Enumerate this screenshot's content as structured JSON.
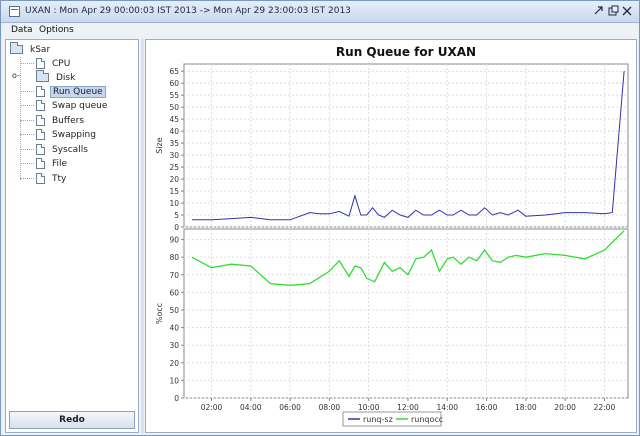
{
  "window": {
    "title": "UXAN : Mon Apr 29 00:00:03 IST 2013 -> Mon Apr 29 23:00:03 IST 2013"
  },
  "menu": {
    "items": [
      "Data",
      "Options"
    ]
  },
  "tree": {
    "root": "kSar",
    "items": [
      {
        "label": "CPU",
        "icon": "document-icon"
      },
      {
        "label": "Disk",
        "icon": "folder-icon",
        "collapsed": true
      },
      {
        "label": "Run Queue",
        "icon": "document-icon",
        "selected": true
      },
      {
        "label": "Swap queue",
        "icon": "document-icon"
      },
      {
        "label": "Buffers",
        "icon": "document-icon"
      },
      {
        "label": "Swapping",
        "icon": "document-icon"
      },
      {
        "label": "Syscalls",
        "icon": "document-icon"
      },
      {
        "label": "File",
        "icon": "document-icon"
      },
      {
        "label": "Tty",
        "icon": "document-icon"
      }
    ]
  },
  "redo_label": "Redo",
  "chart_data": {
    "type": "line",
    "title": "Run Queue for UXAN",
    "xticks": [
      "02:00",
      "04:00",
      "06:00",
      "08:00",
      "10:00",
      "12:00",
      "14:00",
      "16:00",
      "18:00",
      "20:00",
      "22:00"
    ],
    "xlim": [
      0.6,
      23.2
    ],
    "grid": true,
    "legend": "bottom",
    "colors": {
      "runq-sz": "#3333b0",
      "runqocc": "#33dd33"
    },
    "subplots": [
      {
        "ylabel": "Size",
        "ylim": [
          0,
          68
        ],
        "yticks": [
          0,
          5,
          10,
          15,
          20,
          25,
          30,
          35,
          40,
          45,
          50,
          55,
          60,
          65
        ],
        "series": [
          {
            "name": "runq-sz",
            "x": [
              1,
              2,
              3,
              4,
              5,
              6,
              7,
              7.5,
              8,
              8.5,
              9,
              9.3,
              9.6,
              9.9,
              10.2,
              10.5,
              10.8,
              11.2,
              11.6,
              12,
              12.4,
              12.8,
              13.2,
              13.6,
              14,
              14.3,
              14.7,
              15.1,
              15.5,
              15.9,
              16.3,
              16.7,
              17.1,
              17.6,
              18,
              19,
              20,
              21,
              22,
              22.4,
              23
            ],
            "y": [
              3,
              3,
              3.5,
              4,
              3,
              3,
              6,
              5.5,
              5.5,
              6.5,
              4.5,
              13,
              5,
              5,
              8,
              5,
              4,
              7,
              5,
              4,
              7,
              5,
              5,
              7,
              5,
              5,
              7,
              5,
              5,
              8,
              5,
              6,
              5,
              7,
              4.5,
              5,
              6,
              6,
              5.5,
              6,
              65
            ]
          }
        ]
      },
      {
        "ylabel": "%occ",
        "ylim": [
          0,
          96
        ],
        "yticks": [
          0,
          10,
          20,
          30,
          40,
          50,
          60,
          70,
          80,
          90
        ],
        "series": [
          {
            "name": "runqocc",
            "x": [
              1,
              2,
              3,
              4,
              5,
              6,
              7,
              8,
              8.5,
              9,
              9.3,
              9.6,
              9.9,
              10.3,
              10.8,
              11.2,
              11.6,
              12,
              12.4,
              12.8,
              13.2,
              13.6,
              14,
              14.3,
              14.7,
              15.1,
              15.5,
              15.9,
              16.3,
              16.7,
              17.1,
              17.5,
              18,
              19,
              20,
              21,
              22,
              23
            ],
            "y": [
              80,
              74,
              76,
              75,
              65,
              64,
              65,
              72,
              78,
              69,
              75,
              74,
              68,
              66,
              77,
              72,
              74,
              70,
              79,
              80,
              84,
              72,
              79,
              80,
              76,
              80,
              78,
              84,
              78,
              77,
              80,
              81,
              80,
              82,
              81,
              79,
              84,
              95
            ]
          }
        ]
      }
    ]
  }
}
